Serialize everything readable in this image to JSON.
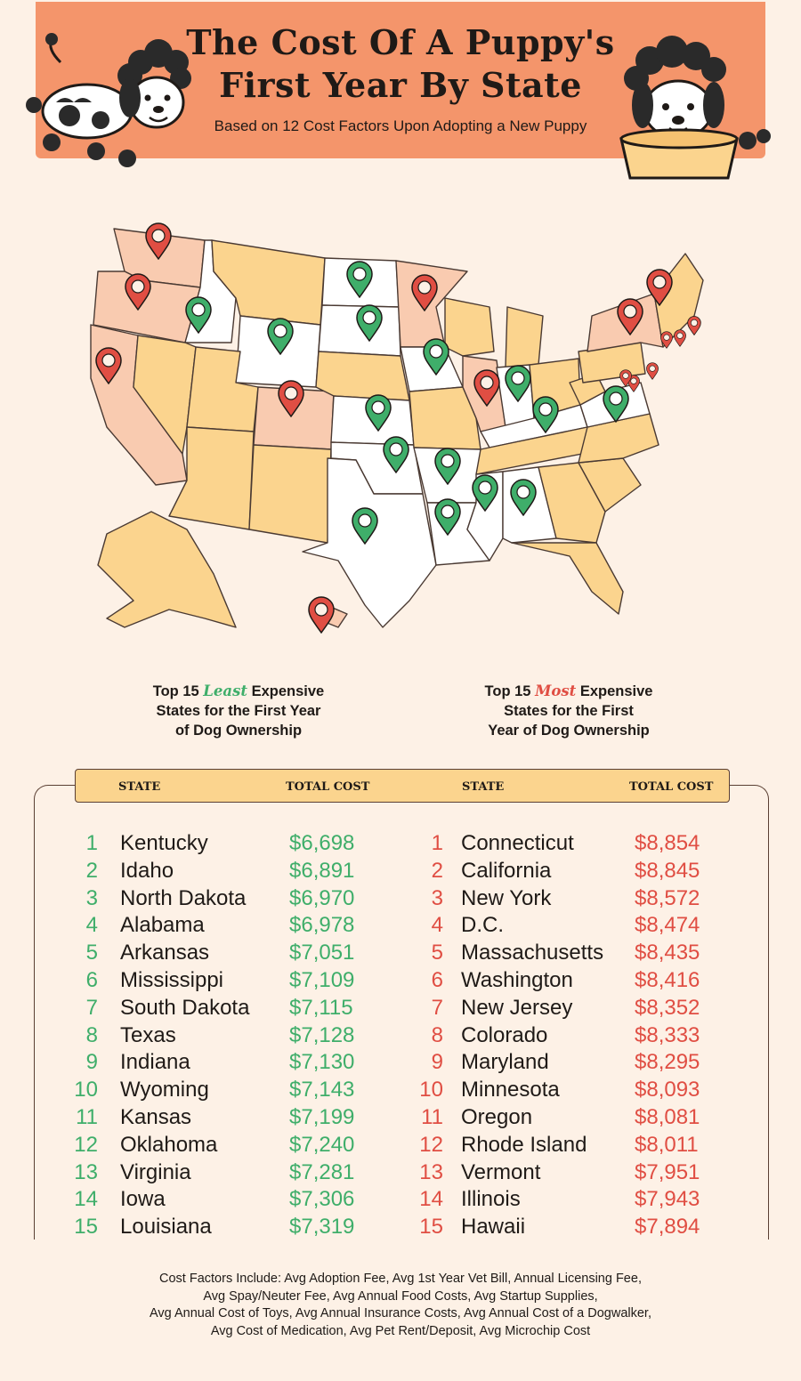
{
  "header": {
    "title_line1": "The Cost Of A Puppy's",
    "title_line2": "First Year By State",
    "subtitle": "Based on 12 Cost Factors Upon Adopting a New Puppy"
  },
  "legend": {
    "least_prefix": "Top 15",
    "least_word": "Least",
    "least_rest_1": "Expensive",
    "least_line2": "States for the First Year",
    "least_line3": "of Dog Ownership",
    "most_prefix": "Top 15",
    "most_word": "Most",
    "most_rest_1": "Expensive",
    "most_line2": "States for the First",
    "most_line3": "Year of Dog Ownership"
  },
  "table": {
    "state_header": "STATE",
    "cost_header": "TOTAL COST",
    "least": [
      {
        "rank": "1",
        "state": "Kentucky",
        "cost": "$6,698"
      },
      {
        "rank": "2",
        "state": "Idaho",
        "cost": "$6,891"
      },
      {
        "rank": "3",
        "state": "North Dakota",
        "cost": "$6,970"
      },
      {
        "rank": "4",
        "state": "Alabama",
        "cost": "$6,978"
      },
      {
        "rank": "5",
        "state": "Arkansas",
        "cost": "$7,051"
      },
      {
        "rank": "6",
        "state": "Mississippi",
        "cost": "$7,109"
      },
      {
        "rank": "7",
        "state": "South Dakota",
        "cost": "$7,115"
      },
      {
        "rank": "8",
        "state": "Texas",
        "cost": "$7,128"
      },
      {
        "rank": "9",
        "state": "Indiana",
        "cost": "$7,130"
      },
      {
        "rank": "10",
        "state": "Wyoming",
        "cost": "$7,143"
      },
      {
        "rank": "11",
        "state": "Kansas",
        "cost": "$7,199"
      },
      {
        "rank": "12",
        "state": "Oklahoma",
        "cost": "$7,240"
      },
      {
        "rank": "13",
        "state": "Virginia",
        "cost": "$7,281"
      },
      {
        "rank": "14",
        "state": "Iowa",
        "cost": "$7,306"
      },
      {
        "rank": "15",
        "state": "Louisiana",
        "cost": "$7,319"
      }
    ],
    "most": [
      {
        "rank": "1",
        "state": "Connecticut",
        "cost": "$8,854"
      },
      {
        "rank": "2",
        "state": "California",
        "cost": "$8,845"
      },
      {
        "rank": "3",
        "state": "New York",
        "cost": "$8,572"
      },
      {
        "rank": "4",
        "state": "D.C.",
        "cost": "$8,474"
      },
      {
        "rank": "5",
        "state": "Massachusetts",
        "cost": "$8,435"
      },
      {
        "rank": "6",
        "state": "Washington",
        "cost": "$8,416"
      },
      {
        "rank": "7",
        "state": "New Jersey",
        "cost": "$8,352"
      },
      {
        "rank": "8",
        "state": "Colorado",
        "cost": "$8,333"
      },
      {
        "rank": "9",
        "state": "Maryland",
        "cost": "$8,295"
      },
      {
        "rank": "10",
        "state": "Minnesota",
        "cost": "$8,093"
      },
      {
        "rank": "11",
        "state": "Oregon",
        "cost": "$8,081"
      },
      {
        "rank": "12",
        "state": "Rhode Island",
        "cost": "$8,011"
      },
      {
        "rank": "13",
        "state": "Vermont",
        "cost": "$7,951"
      },
      {
        "rank": "14",
        "state": "Illinois",
        "cost": "$7,943"
      },
      {
        "rank": "15",
        "state": "Hawaii",
        "cost": "$7,894"
      }
    ]
  },
  "footer": {
    "line1": "Cost Factors Include: Avg Adoption Fee, Avg 1st Year Vet Bill, Annual Licensing Fee,",
    "line2": "Avg Spay/Neuter Fee, Avg Annual Food Costs, Avg Startup Supplies,",
    "line3": "Avg Annual Cost of Toys, Avg Annual Insurance Costs, Avg Annual Cost of a Dogwalker,",
    "line4": "Avg Cost of Medication, Avg Pet Rent/Deposit, Avg Microchip Cost"
  },
  "colors": {
    "banner": "#f4956b",
    "background": "#fdf1e6",
    "least_green": "#3fae6a",
    "most_red": "#e04e43",
    "neutral_state": "#fbd48e",
    "most_state": "#f9cbb0",
    "least_state": "#ffffff"
  },
  "map": {
    "least_pins": [
      "Kentucky",
      "Idaho",
      "North Dakota",
      "Alabama",
      "Arkansas",
      "Mississippi",
      "South Dakota",
      "Texas",
      "Indiana",
      "Wyoming",
      "Kansas",
      "Oklahoma",
      "Virginia",
      "Iowa",
      "Louisiana"
    ],
    "most_pins": [
      "Connecticut",
      "California",
      "New York",
      "D.C.",
      "Massachusetts",
      "Washington",
      "New Jersey",
      "Colorado",
      "Maryland",
      "Minnesota",
      "Oregon",
      "Rhode Island",
      "Vermont",
      "Illinois",
      "Hawaii"
    ]
  }
}
